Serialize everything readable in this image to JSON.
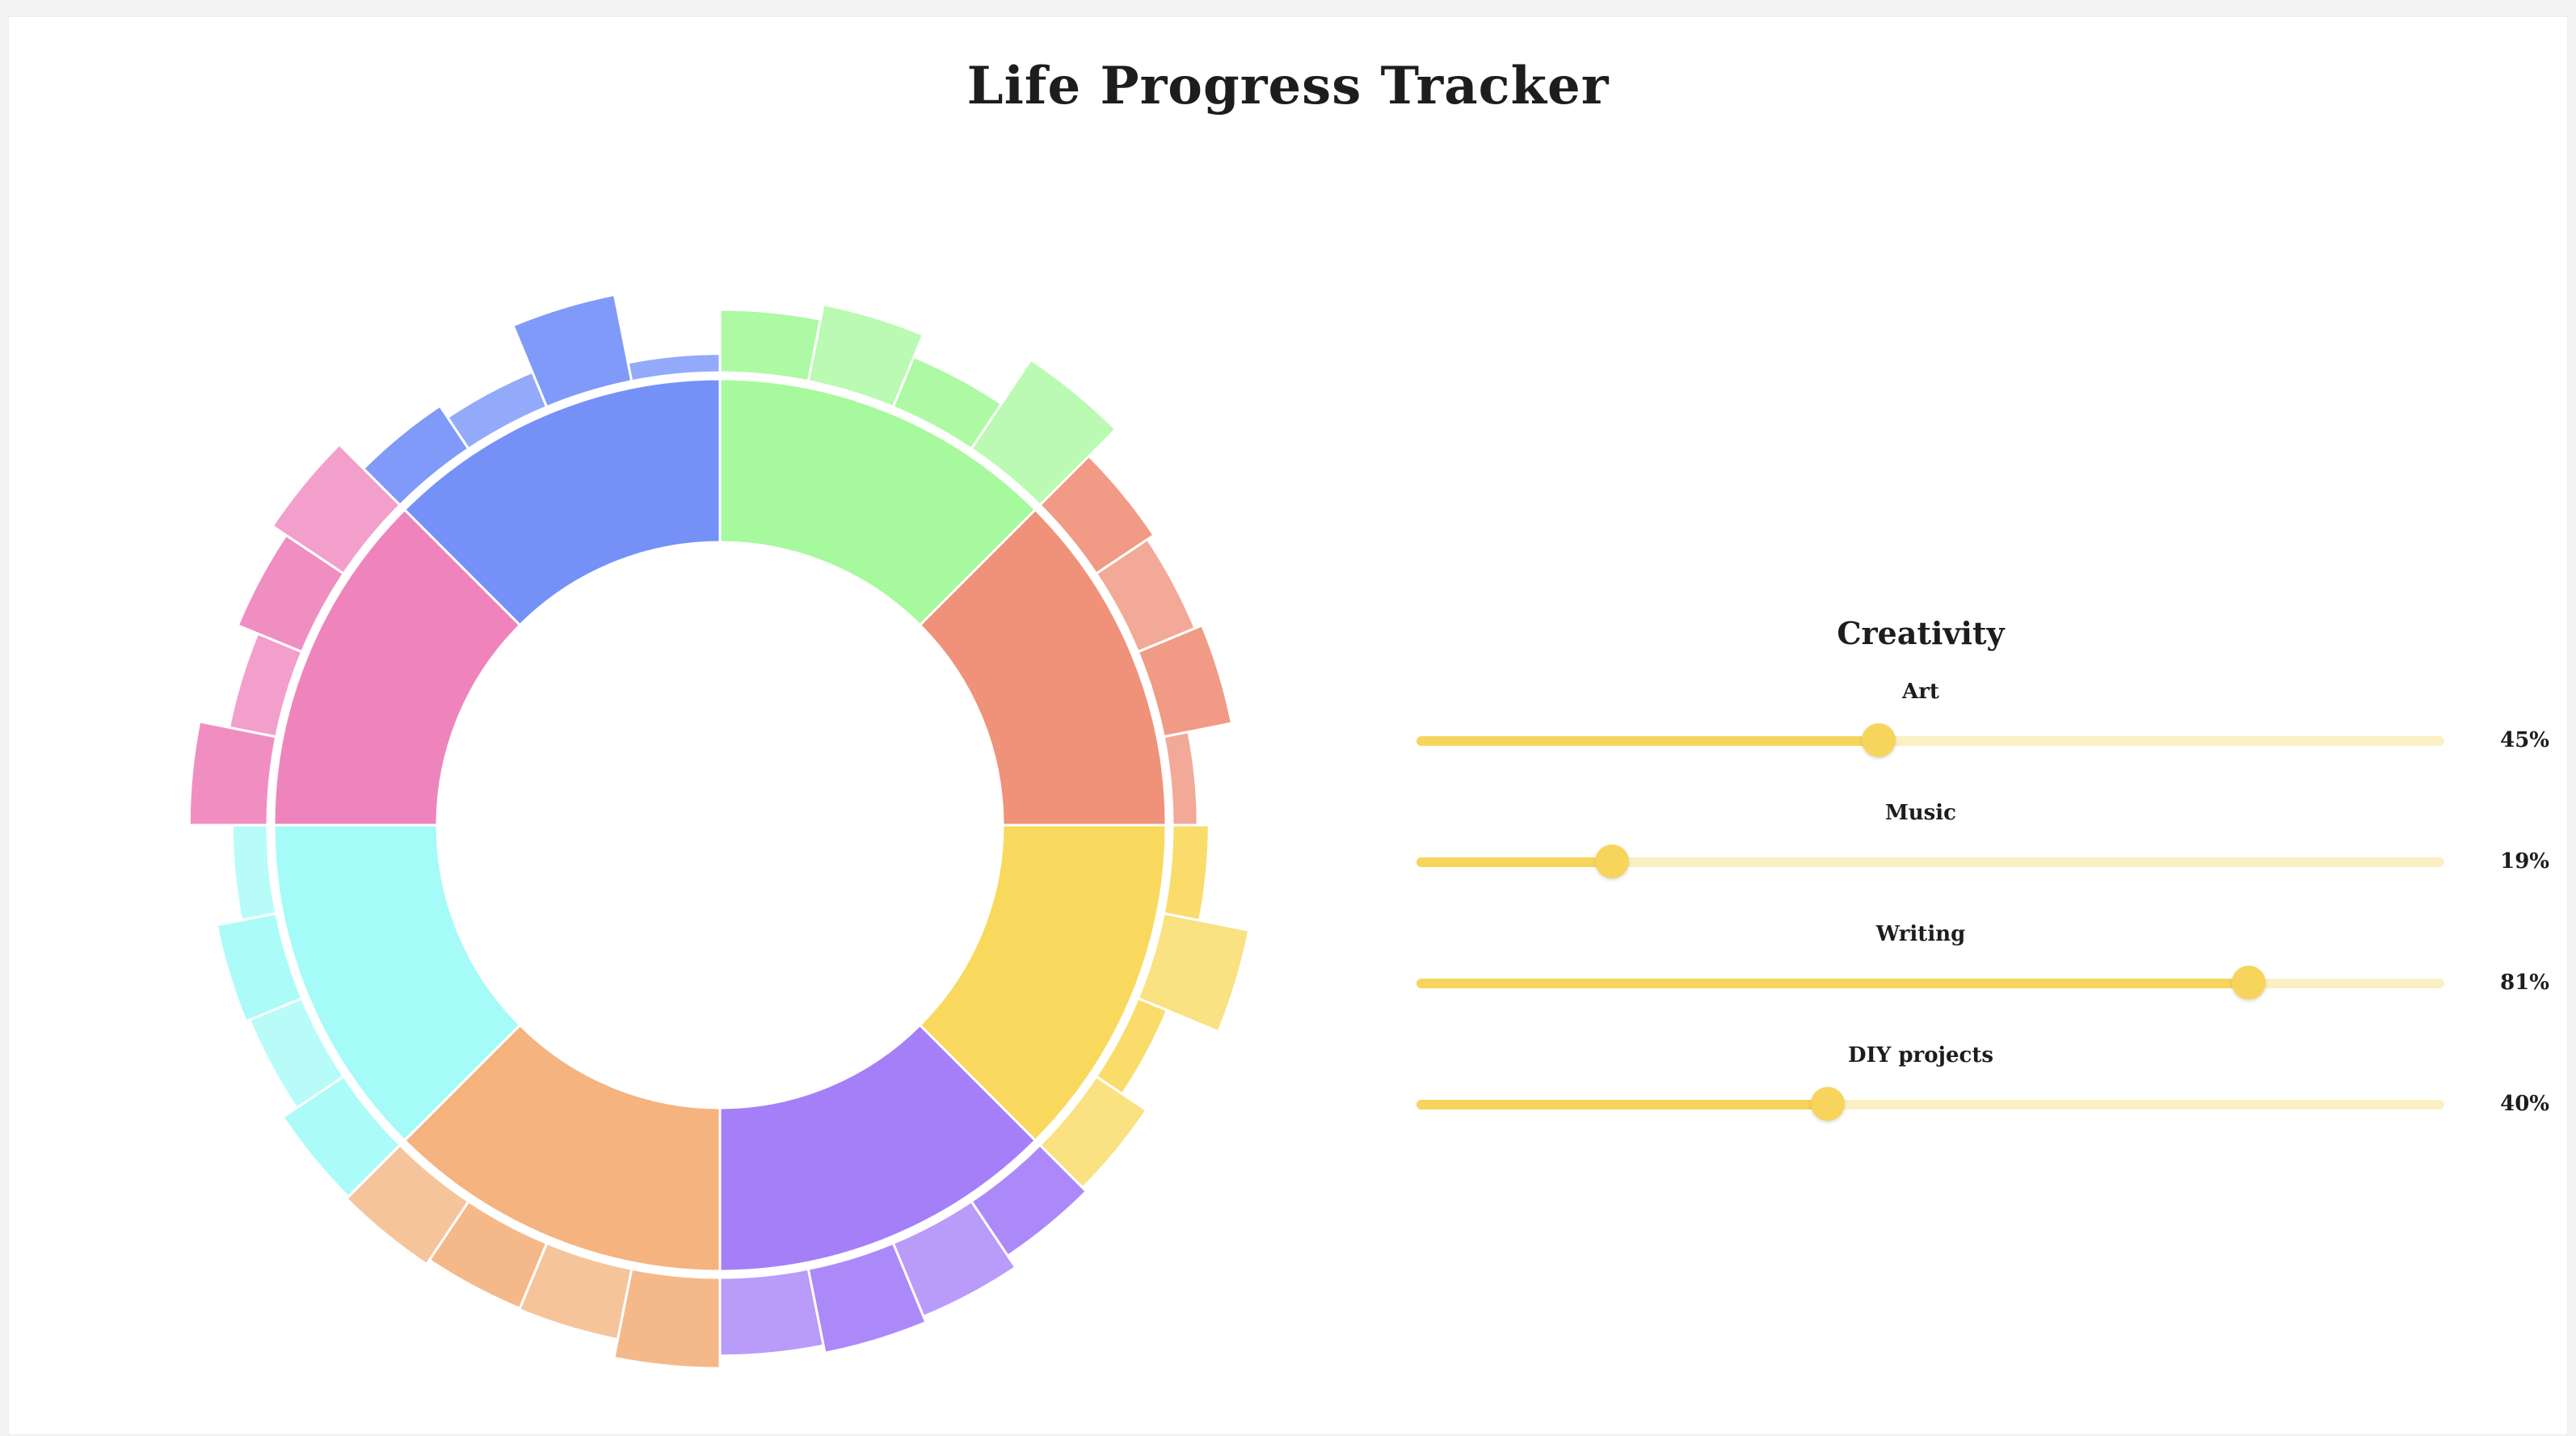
{
  "app": {
    "title": "Life Progress Tracker"
  },
  "chart_data": {
    "type": "sunburst",
    "categories": [
      {
        "name": "",
        "color": "#a6f99c",
        "values": [
          0.5,
          0.62,
          0.43,
          0.85
        ]
      },
      {
        "name": "",
        "color": "#f0917a",
        "values": [
          0.55,
          0.49,
          0.55,
          0.2
        ]
      },
      {
        "name": "",
        "color": "#f8d95d",
        "values": [
          0.29,
          0.69,
          0.25,
          0.48
        ]
      },
      {
        "name": "",
        "color": "#a57ff8",
        "values": [
          0.52,
          0.63,
          0.68,
          0.62
        ]
      },
      {
        "name": "",
        "color": "#f4b37f",
        "values": [
          0.72,
          0.57,
          0.56,
          0.6
        ]
      },
      {
        "name": "",
        "color": "#a4fbf8",
        "values": [
          0.58,
          0.45,
          0.48,
          0.28
        ]
      },
      {
        "name": "",
        "color": "#ef84bc",
        "values": [
          0.62,
          0.38,
          0.55,
          0.68
        ]
      },
      {
        "name": "",
        "color": "#7591f8",
        "values": [
          0.41,
          0.3,
          0.7,
          0.15
        ]
      }
    ]
  },
  "panel": {
    "title": "Creativity",
    "items": [
      {
        "label": "Art",
        "value": 45,
        "value_text": "45%"
      },
      {
        "label": "Music",
        "value": 19,
        "value_text": "19%"
      },
      {
        "label": "Writing",
        "value": 81,
        "value_text": "81%"
      },
      {
        "label": "DIY projects",
        "value": 40,
        "value_text": "40%"
      }
    ]
  }
}
